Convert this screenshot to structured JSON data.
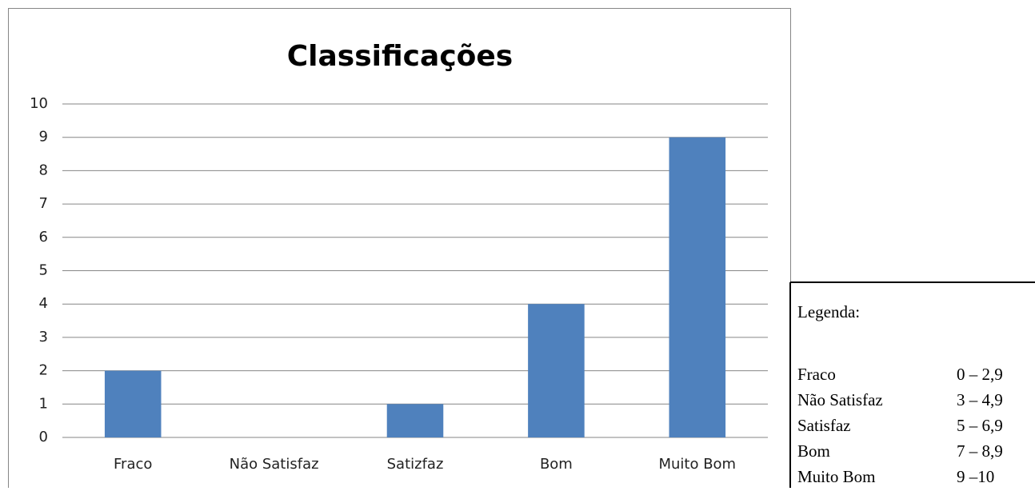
{
  "chart_data": {
    "type": "bar",
    "title": "Classificações",
    "categories": [
      "Fraco",
      "Não Satisfaz",
      "Satizfaz",
      "Bom",
      "Muito Bom"
    ],
    "values": [
      2,
      0,
      1,
      4,
      9
    ],
    "color": "#4f81bd",
    "ylim": [
      0,
      10
    ],
    "yticks": [
      0,
      1,
      2,
      3,
      4,
      5,
      6,
      7,
      8,
      9,
      10
    ],
    "grid": true
  },
  "legend_box": {
    "title": "Legenda:",
    "rows": [
      [
        "Fraco",
        "0 – 2,9"
      ],
      [
        "Não Satisfaz",
        "3 – 4,9"
      ],
      [
        "Satisfaz",
        "5 – 6,9"
      ],
      [
        "Bom",
        "7 – 8,9"
      ],
      [
        "Muito Bom",
        "9 –10"
      ]
    ]
  }
}
